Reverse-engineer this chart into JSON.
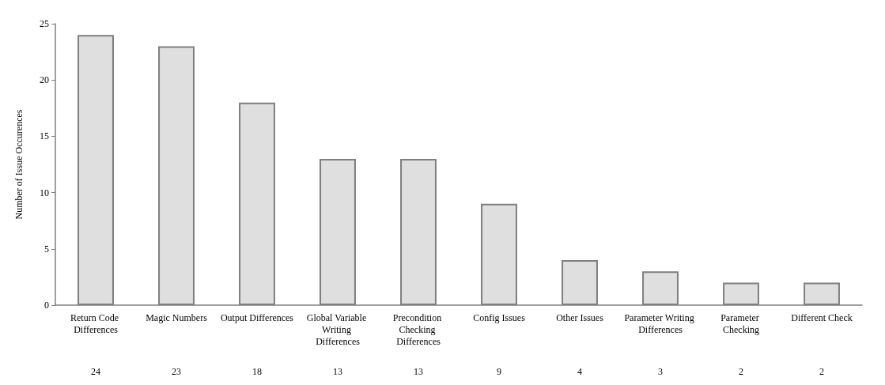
{
  "chart_data": {
    "type": "bar",
    "ylabel": "Number of Issue Occurences",
    "categories": [
      "Return Code Differences",
      "Magic Numbers",
      "Output Differences",
      "Global Variable Writing Differences",
      "Precondition Checking Differences",
      "Config Issues",
      "Other Issues",
      "Parameter Writing Differences",
      "Parameter Checking",
      "Different Check"
    ],
    "values": [
      24,
      23,
      18,
      13,
      13,
      9,
      4,
      3,
      2,
      2
    ],
    "color": "#dfdfdf",
    "ylim": [
      0,
      25
    ],
    "yticks": [
      0,
      5,
      10,
      15,
      20,
      25
    ],
    "grid": false,
    "data_labels": true
  }
}
